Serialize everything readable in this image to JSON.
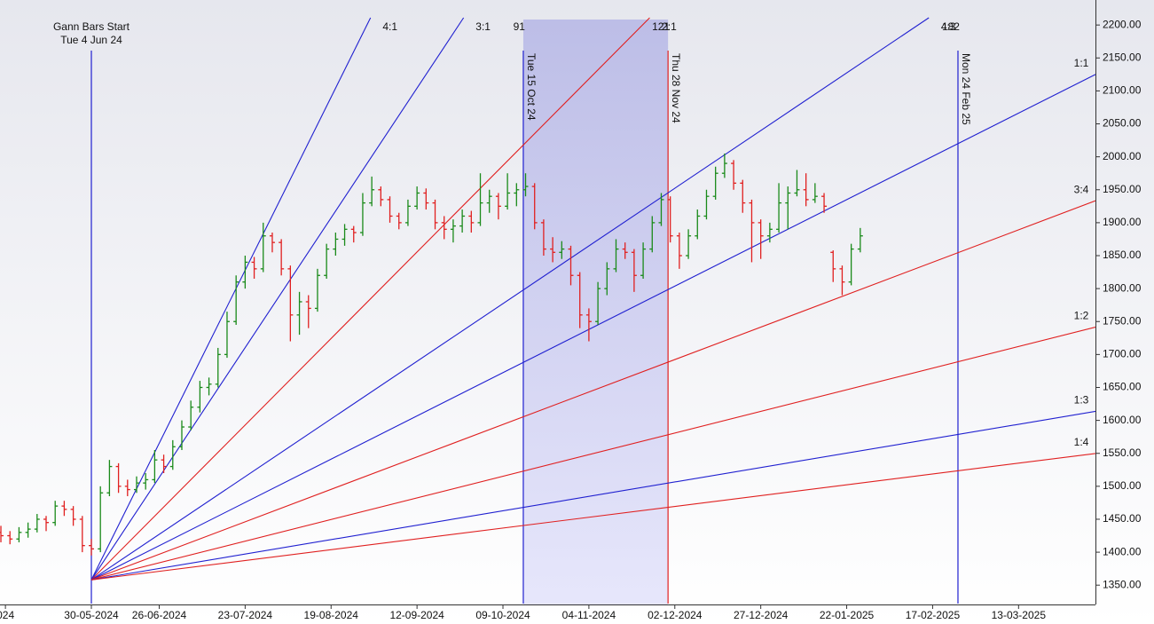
{
  "chart_data": {
    "type": "ohlc",
    "up_color": "#1a8a1a",
    "down_color": "#e02020",
    "xlim": [
      -0.2,
      242
    ],
    "ylim": [
      1322,
      2211
    ],
    "xticks": [
      {
        "value": 1,
        "label": "024"
      },
      {
        "value": 20,
        "label": "30-05-2024"
      },
      {
        "value": 35,
        "label": "26-06-2024"
      },
      {
        "value": 54,
        "label": "23-07-2024"
      },
      {
        "value": 73,
        "label": "19-08-2024"
      },
      {
        "value": 92,
        "label": "12-09-2024"
      },
      {
        "value": 111,
        "label": "09-10-2024"
      },
      {
        "value": 130,
        "label": "04-11-2024"
      },
      {
        "value": 149,
        "label": "02-12-2024"
      },
      {
        "value": 168,
        "label": "27-12-2024"
      },
      {
        "value": 187,
        "label": "22-01-2025"
      },
      {
        "value": 206,
        "label": "17-02-2025"
      },
      {
        "value": 225,
        "label": "13-03-2025"
      }
    ],
    "yticks": [
      {
        "value": 1350,
        "label": "1350.00"
      },
      {
        "value": 1400,
        "label": "1400.00"
      },
      {
        "value": 1450,
        "label": "1450.00"
      },
      {
        "value": 1500,
        "label": "1500.00"
      },
      {
        "value": 1550,
        "label": "1550.00"
      },
      {
        "value": 1600,
        "label": "1600.00"
      },
      {
        "value": 1650,
        "label": "1650.00"
      },
      {
        "value": 1700,
        "label": "1700.00"
      },
      {
        "value": 1750,
        "label": "1750.00"
      },
      {
        "value": 1800,
        "label": "1800.00"
      },
      {
        "value": 1850,
        "label": "1850.00"
      },
      {
        "value": 1900,
        "label": "1900.00"
      },
      {
        "value": 1950,
        "label": "1950.00"
      },
      {
        "value": 2000,
        "label": "2000.00"
      },
      {
        "value": 2050,
        "label": "2050.00"
      },
      {
        "value": 2100,
        "label": "2100.00"
      },
      {
        "value": 2150,
        "label": "2150.00"
      },
      {
        "value": 2200,
        "label": "2200.00"
      }
    ],
    "x": [
      0,
      2,
      4,
      6,
      8,
      10,
      12,
      14,
      16,
      18,
      20,
      22,
      24,
      26,
      28,
      30,
      32,
      34,
      36,
      38,
      40,
      42,
      44,
      46,
      48,
      50,
      52,
      54,
      56,
      58,
      60,
      62,
      64,
      66,
      68,
      70,
      72,
      74,
      76,
      78,
      80,
      82,
      84,
      86,
      88,
      90,
      92,
      94,
      96,
      98,
      100,
      102,
      104,
      106,
      108,
      110,
      112,
      114,
      116,
      118,
      120,
      122,
      124,
      126,
      128,
      130,
      132,
      134,
      136,
      138,
      140,
      142,
      144,
      146,
      148,
      150,
      152,
      154,
      156,
      158,
      160,
      162,
      164,
      166,
      168,
      170,
      172,
      174,
      176,
      178,
      180,
      182,
      184,
      186,
      188,
      190
    ],
    "values": [
      [
        1430,
        1440,
        1415,
        1425
      ],
      [
        1425,
        1432,
        1412,
        1420
      ],
      [
        1420,
        1438,
        1415,
        1430
      ],
      [
        1430,
        1445,
        1422,
        1435
      ],
      [
        1435,
        1458,
        1430,
        1450
      ],
      [
        1450,
        1455,
        1432,
        1445
      ],
      [
        1445,
        1478,
        1440,
        1470
      ],
      [
        1470,
        1478,
        1455,
        1465
      ],
      [
        1465,
        1470,
        1440,
        1450
      ],
      [
        1450,
        1455,
        1400,
        1410
      ],
      [
        1410,
        1420,
        1395,
        1405
      ],
      [
        1405,
        1500,
        1400,
        1490
      ],
      [
        1490,
        1540,
        1485,
        1530
      ],
      [
        1530,
        1535,
        1490,
        1500
      ],
      [
        1500,
        1510,
        1485,
        1495
      ],
      [
        1495,
        1515,
        1490,
        1505
      ],
      [
        1505,
        1520,
        1495,
        1510
      ],
      [
        1510,
        1555,
        1505,
        1540
      ],
      [
        1540,
        1548,
        1520,
        1530
      ],
      [
        1530,
        1570,
        1525,
        1560
      ],
      [
        1560,
        1600,
        1555,
        1590
      ],
      [
        1590,
        1630,
        1585,
        1620
      ],
      [
        1620,
        1660,
        1612,
        1650
      ],
      [
        1650,
        1665,
        1638,
        1655
      ],
      [
        1655,
        1710,
        1650,
        1700
      ],
      [
        1700,
        1765,
        1695,
        1750
      ],
      [
        1750,
        1820,
        1745,
        1810
      ],
      [
        1810,
        1850,
        1800,
        1840
      ],
      [
        1840,
        1848,
        1815,
        1830
      ],
      [
        1830,
        1900,
        1825,
        1880
      ],
      [
        1880,
        1885,
        1855,
        1870
      ],
      [
        1870,
        1875,
        1820,
        1830
      ],
      [
        1830,
        1835,
        1720,
        1760
      ],
      [
        1760,
        1795,
        1730,
        1780
      ],
      [
        1780,
        1790,
        1740,
        1770
      ],
      [
        1770,
        1830,
        1765,
        1820
      ],
      [
        1820,
        1868,
        1815,
        1860
      ],
      [
        1860,
        1885,
        1850,
        1875
      ],
      [
        1875,
        1898,
        1865,
        1890
      ],
      [
        1890,
        1895,
        1870,
        1885
      ],
      [
        1885,
        1945,
        1880,
        1930
      ],
      [
        1930,
        1970,
        1925,
        1950
      ],
      [
        1950,
        1955,
        1925,
        1935
      ],
      [
        1935,
        1940,
        1900,
        1910
      ],
      [
        1910,
        1915,
        1890,
        1900
      ],
      [
        1900,
        1935,
        1895,
        1925
      ],
      [
        1925,
        1955,
        1920,
        1945
      ],
      [
        1945,
        1952,
        1920,
        1930
      ],
      [
        1930,
        1935,
        1890,
        1900
      ],
      [
        1900,
        1910,
        1875,
        1890
      ],
      [
        1890,
        1905,
        1870,
        1895
      ],
      [
        1895,
        1920,
        1885,
        1910
      ],
      [
        1910,
        1918,
        1885,
        1900
      ],
      [
        1900,
        1975,
        1895,
        1930
      ],
      [
        1930,
        1950,
        1915,
        1940
      ],
      [
        1940,
        1945,
        1905,
        1925
      ],
      [
        1925,
        1975,
        1920,
        1945
      ],
      [
        1945,
        1960,
        1925,
        1950
      ],
      [
        1950,
        1975,
        1940,
        1955
      ],
      [
        1955,
        1960,
        1890,
        1900
      ],
      [
        1900,
        1905,
        1850,
        1860
      ],
      [
        1860,
        1878,
        1840,
        1855
      ],
      [
        1855,
        1872,
        1845,
        1860
      ],
      [
        1860,
        1865,
        1805,
        1820
      ],
      [
        1820,
        1825,
        1740,
        1760
      ],
      [
        1760,
        1770,
        1720,
        1750
      ],
      [
        1750,
        1810,
        1745,
        1800
      ],
      [
        1800,
        1840,
        1790,
        1830
      ],
      [
        1830,
        1875,
        1825,
        1860
      ],
      [
        1860,
        1870,
        1845,
        1855
      ],
      [
        1855,
        1860,
        1795,
        1820
      ],
      [
        1820,
        1870,
        1815,
        1860
      ],
      [
        1860,
        1910,
        1855,
        1900
      ],
      [
        1900,
        1945,
        1895,
        1935
      ],
      [
        1935,
        1940,
        1870,
        1880
      ],
      [
        1880,
        1885,
        1830,
        1850
      ],
      [
        1850,
        1890,
        1845,
        1880
      ],
      [
        1880,
        1920,
        1875,
        1910
      ],
      [
        1910,
        1950,
        1905,
        1940
      ],
      [
        1940,
        1985,
        1935,
        1975
      ],
      [
        1975,
        2005,
        1968,
        1990
      ],
      [
        1990,
        1995,
        1950,
        1960
      ],
      [
        1960,
        1965,
        1915,
        1930
      ],
      [
        1930,
        1935,
        1840,
        1900
      ],
      [
        1900,
        1905,
        1845,
        1880
      ],
      [
        1880,
        1900,
        1870,
        1890
      ],
      [
        1890,
        1960,
        1885,
        1930
      ],
      [
        1930,
        1955,
        1890,
        1945
      ],
      [
        1945,
        1980,
        1940,
        1950
      ],
      [
        1950,
        1975,
        1925,
        1935
      ],
      [
        1935,
        1960,
        1930,
        1940
      ],
      [
        1940,
        1945,
        1915,
        1925
      ],
      [
        1855,
        1858,
        1810,
        1830
      ],
      [
        1830,
        1835,
        1790,
        1810
      ],
      [
        1810,
        1868,
        1805,
        1860
      ],
      [
        1860,
        1892,
        1855,
        1880
      ]
    ],
    "gann_fan": {
      "title": "Gann Bars Start",
      "subtitle": "Tue 4 Jun 24",
      "origin_x": 20,
      "origin_price": 1358,
      "unit_slope": 3.455,
      "lines": [
        {
          "label": "4:1",
          "color": "#2020d0"
        },
        {
          "label": "3:1",
          "color": "#2020d0"
        },
        {
          "label": "2:1",
          "color": "#e02020"
        },
        {
          "label": "4:3",
          "color": "#2020d0"
        },
        {
          "label": "1:1",
          "color": "#2020d0"
        },
        {
          "label": "3:4",
          "color": "#e02020"
        },
        {
          "label": "1:2",
          "color": "#e02020"
        },
        {
          "label": "1:3",
          "color": "#2020d0"
        },
        {
          "label": "1:4",
          "color": "#e02020"
        }
      ]
    },
    "verticals": [
      {
        "x": 115.5,
        "label": "Tue 15 Oct 24",
        "count": 91,
        "color": "#2020d0"
      },
      {
        "x": 147.5,
        "label": "Thu 28 Nov 24",
        "count": 121,
        "color": "#e02020"
      },
      {
        "x": 211.6,
        "label": "Mon 24 Feb 25",
        "count": 182,
        "color": "#2020d0"
      }
    ],
    "shade_color": "#c8c8f4"
  }
}
